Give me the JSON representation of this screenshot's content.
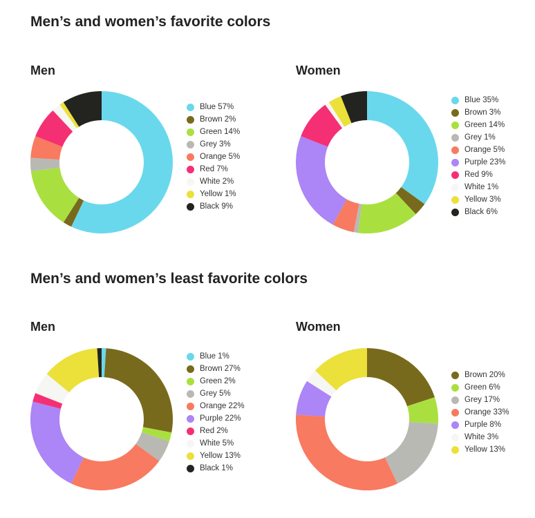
{
  "sections": [
    {
      "title": "Men’s and women’s favorite colors"
    },
    {
      "title": "Men’s and women’s least favorite colors"
    }
  ],
  "chart_data": [
    {
      "type": "pie",
      "title": "Men",
      "slices": [
        {
          "label": "Blue 57%",
          "name": "Blue",
          "value": 57,
          "color": "#6ad8ec"
        },
        {
          "label": "Brown 2%",
          "name": "Brown",
          "value": 2,
          "color": "#786a1c"
        },
        {
          "label": "Green 14%",
          "name": "Green",
          "value": 14,
          "color": "#a9e040"
        },
        {
          "label": "Grey 3%",
          "name": "Grey",
          "value": 3,
          "color": "#b9b9b4"
        },
        {
          "label": "Orange 5%",
          "name": "Orange",
          "value": 5,
          "color": "#f87a60"
        },
        {
          "label": "Red 7%",
          "name": "Red",
          "value": 7,
          "color": "#f52f73"
        },
        {
          "label": "White 2%",
          "name": "White",
          "value": 2,
          "color": "#f6f6f2"
        },
        {
          "label": "Yellow 1%",
          "name": "Yellow",
          "value": 1,
          "color": "#ece03a"
        },
        {
          "label": "Black 9%",
          "name": "Black",
          "value": 9,
          "color": "#23231f"
        }
      ]
    },
    {
      "type": "pie",
      "title": "Women",
      "slices": [
        {
          "label": "Blue 35%",
          "name": "Blue",
          "value": 35,
          "color": "#6ad8ec"
        },
        {
          "label": "Brown 3%",
          "name": "Brown",
          "value": 3,
          "color": "#786a1c"
        },
        {
          "label": "Green 14%",
          "name": "Green",
          "value": 14,
          "color": "#a9e040"
        },
        {
          "label": "Grey 1%",
          "name": "Grey",
          "value": 1,
          "color": "#b9b9b4"
        },
        {
          "label": "Orange 5%",
          "name": "Orange",
          "value": 5,
          "color": "#f87a60"
        },
        {
          "label": "Purple 23%",
          "name": "Purple",
          "value": 23,
          "color": "#ac85f6"
        },
        {
          "label": "Red 9%",
          "name": "Red",
          "value": 9,
          "color": "#f52f73"
        },
        {
          "label": "White 1%",
          "name": "White",
          "value": 1,
          "color": "#f6f6f2"
        },
        {
          "label": "Yellow 3%",
          "name": "Yellow",
          "value": 3,
          "color": "#ece03a"
        },
        {
          "label": "Black 6%",
          "name": "Black",
          "value": 6,
          "color": "#23231f"
        }
      ]
    },
    {
      "type": "pie",
      "title": "Men",
      "slices": [
        {
          "label": "Blue 1%",
          "name": "Blue",
          "value": 1,
          "color": "#6ad8ec"
        },
        {
          "label": "Brown 27%",
          "name": "Brown",
          "value": 27,
          "color": "#786a1c"
        },
        {
          "label": "Green 2%",
          "name": "Green",
          "value": 2,
          "color": "#a9e040"
        },
        {
          "label": "Grey 5%",
          "name": "Grey",
          "value": 5,
          "color": "#b9b9b4"
        },
        {
          "label": "Orange 22%",
          "name": "Orange",
          "value": 22,
          "color": "#f87a60"
        },
        {
          "label": "Purple 22%",
          "name": "Purple",
          "value": 22,
          "color": "#ac85f6"
        },
        {
          "label": "Red 2%",
          "name": "Red",
          "value": 2,
          "color": "#f52f73"
        },
        {
          "label": "White 5%",
          "name": "White",
          "value": 5,
          "color": "#f6f6f2"
        },
        {
          "label": "Yellow 13%",
          "name": "Yellow",
          "value": 13,
          "color": "#ece03a"
        },
        {
          "label": "Black 1%",
          "name": "Black",
          "value": 1,
          "color": "#23231f"
        }
      ]
    },
    {
      "type": "pie",
      "title": "Women",
      "slices": [
        {
          "label": "Brown 20%",
          "name": "Brown",
          "value": 20,
          "color": "#786a1c"
        },
        {
          "label": "Green 6%",
          "name": "Green",
          "value": 6,
          "color": "#a9e040"
        },
        {
          "label": "Grey 17%",
          "name": "Grey",
          "value": 17,
          "color": "#b9b9b4"
        },
        {
          "label": "Orange 33%",
          "name": "Orange",
          "value": 33,
          "color": "#f87a60"
        },
        {
          "label": "Purple 8%",
          "name": "Purple",
          "value": 8,
          "color": "#ac85f6"
        },
        {
          "label": "White 3%",
          "name": "White",
          "value": 3,
          "color": "#f6f6f2"
        },
        {
          "label": "Yellow 13%",
          "name": "Yellow",
          "value": 13,
          "color": "#ece03a"
        }
      ]
    }
  ]
}
